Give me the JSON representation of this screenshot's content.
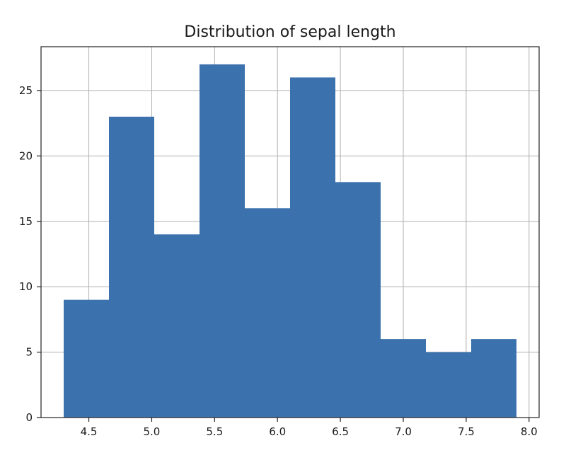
{
  "chart_data": {
    "type": "bar",
    "title": "Distribution of sepal length",
    "xlabel": "",
    "ylabel": "",
    "bin_edges": [
      4.3,
      4.66,
      5.02,
      5.38,
      5.74,
      6.1,
      6.46,
      6.82,
      7.18,
      7.54,
      7.9
    ],
    "counts": [
      9,
      23,
      14,
      27,
      16,
      26,
      18,
      6,
      5,
      6
    ],
    "xlim": [
      4.12,
      8.08
    ],
    "ylim": [
      0,
      28.35
    ],
    "x_ticks": [
      4.5,
      5.0,
      5.5,
      6.0,
      6.5,
      7.0,
      7.5,
      8.0
    ],
    "x_tick_labels": [
      "4.5",
      "5.0",
      "5.5",
      "6.0",
      "6.5",
      "7.0",
      "7.5",
      "8.0"
    ],
    "y_ticks": [
      0,
      5,
      10,
      15,
      20,
      25
    ],
    "y_tick_labels": [
      "0",
      "5",
      "10",
      "15",
      "20",
      "25"
    ],
    "grid": true,
    "legend": "none",
    "bar_color": "#3b72ad",
    "grid_color": "#b0b0b0"
  }
}
